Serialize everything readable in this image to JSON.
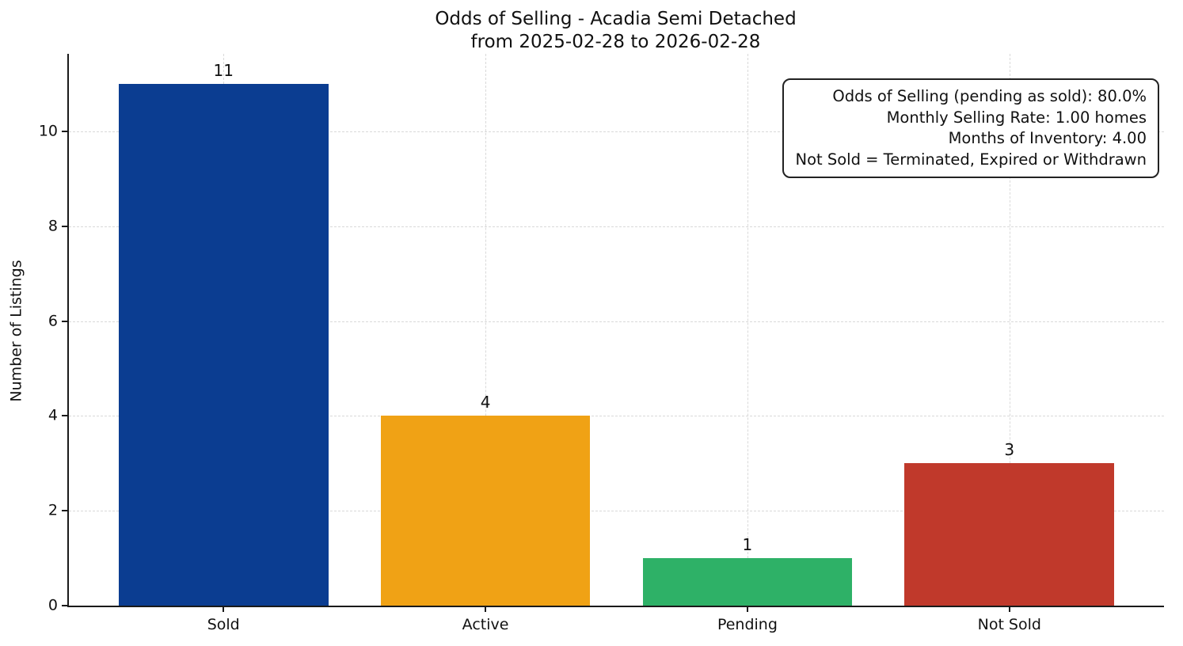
{
  "title": {
    "line1": "Odds of Selling - Acadia Semi Detached",
    "line2": "from 2025-02-28 to 2026-02-28"
  },
  "ylabel": "Number of Listings",
  "annotation": {
    "lines": [
      "Odds of Selling (pending as sold): 80.0%",
      "Monthly Selling Rate: 1.00 homes",
      "Months of Inventory: 4.00",
      "Not Sold = Terminated, Expired or Withdrawn"
    ]
  },
  "chart_data": {
    "type": "bar",
    "title": "Odds of Selling - Acadia Semi Detached\nfrom 2025-02-28 to 2026-02-28",
    "categories": [
      "Sold",
      "Active",
      "Pending",
      "Not Sold"
    ],
    "values": [
      11,
      4,
      1,
      3
    ],
    "bar_colors": [
      "#0b3d91",
      "#f0a215",
      "#2eb167",
      "#c0392b"
    ],
    "xlabel": "",
    "ylabel": "Number of Listings",
    "ylim": [
      0,
      11.64
    ],
    "yticks": [
      0,
      2,
      4,
      6,
      8,
      10
    ],
    "xlim": [
      -0.59,
      3.59
    ],
    "bar_width": 0.8,
    "grid": "dashed",
    "legend": "none",
    "annotation_lines": [
      "Odds of Selling (pending as sold): 80.0%",
      "Monthly Selling Rate: 1.00 homes",
      "Months of Inventory: 4.00",
      "Not Sold = Terminated, Expired or Withdrawn"
    ]
  }
}
